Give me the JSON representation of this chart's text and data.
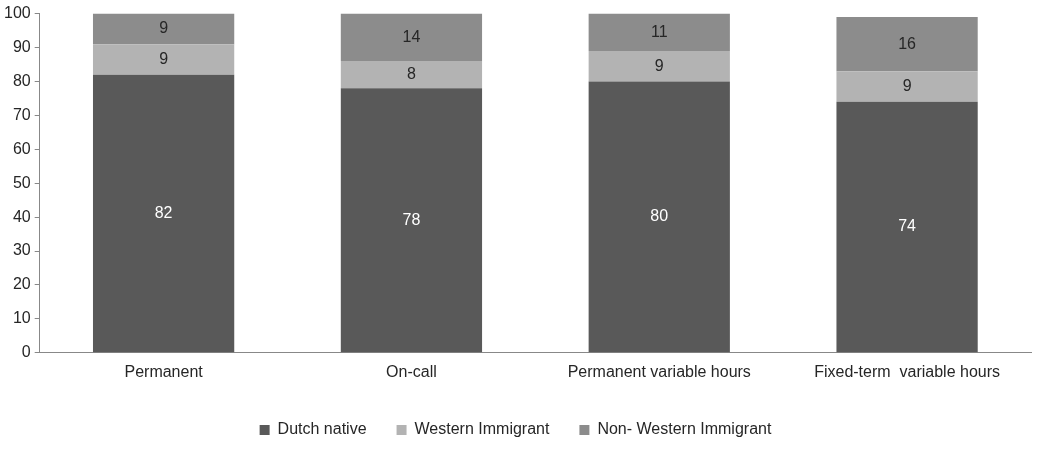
{
  "chart_data": {
    "type": "bar",
    "stacked": true,
    "categories": [
      "Permanent",
      "On-call",
      "Permanent variable hours",
      "Fixed-term  variable hours"
    ],
    "series": [
      {
        "name": "Dutch native",
        "color": "#595959",
        "values": [
          82,
          78,
          80,
          74
        ]
      },
      {
        "name": "Western Immigrant",
        "color": "#b3b3b3",
        "values": [
          9,
          8,
          9,
          9
        ]
      },
      {
        "name": "Non- Western Immigrant",
        "color": "#8c8c8c",
        "values": [
          9,
          14,
          11,
          16
        ]
      }
    ],
    "ylim": [
      0,
      100
    ],
    "yticks": [
      0,
      10,
      20,
      30,
      40,
      50,
      60,
      70,
      80,
      90,
      100
    ],
    "grid": false,
    "legend": "bottom",
    "data_labels": true
  }
}
